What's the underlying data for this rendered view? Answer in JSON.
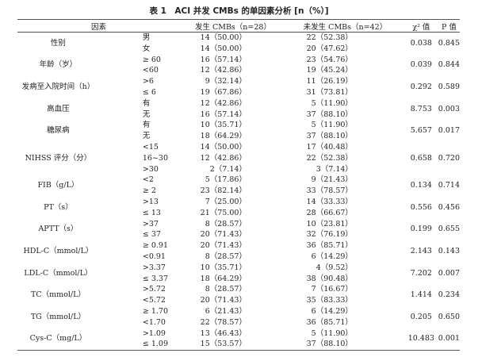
{
  "title": "表 1　ACI 并发 CMBs 的单因素分析 [n（%）]",
  "headers": {
    "factor": "因素",
    "cmb": "发生 CMBs（n=28）",
    "nocmb": "未发生 CMBs（n=42）",
    "chi": "χ² 值",
    "p": "P 值"
  },
  "rows": [
    {
      "factor": "性别",
      "chi": "0.038",
      "p": "0.845",
      "levels": [
        {
          "level": "男",
          "cmb": "14（50.00）",
          "nocmb": "22（52.38）"
        },
        {
          "level": "女",
          "cmb": "14（50.00）",
          "nocmb": "20（47.62）"
        }
      ]
    },
    {
      "factor": "年龄（岁）",
      "chi": "0.039",
      "p": "0.844",
      "levels": [
        {
          "level": "≥ 60",
          "cmb": "16（57.14）",
          "nocmb": "23（54.76）"
        },
        {
          "level": "<60",
          "cmb": "12（42.86）",
          "nocmb": "19（45.24）"
        }
      ]
    },
    {
      "factor": "发病至入院时间（h）",
      "chi": "0.292",
      "p": "0.589",
      "levels": [
        {
          "level": ">6",
          "cmb": "9（32.14）",
          "nocmb": "11（26.19）"
        },
        {
          "level": "≤ 6",
          "cmb": "19（67.86）",
          "nocmb": "31（73.81）"
        }
      ]
    },
    {
      "factor": "高血压",
      "chi": "8.753",
      "p": "0.003",
      "levels": [
        {
          "level": "有",
          "cmb": "12（42.86）",
          "nocmb": "5（11.90）"
        },
        {
          "level": "无",
          "cmb": "16（57.14）",
          "nocmb": "37（88.10）"
        }
      ]
    },
    {
      "factor": "糖尿病",
      "chi": "5.657",
      "p": "0.017",
      "levels": [
        {
          "level": "有",
          "cmb": "10（35.71）",
          "nocmb": "5（11.90）"
        },
        {
          "level": "无",
          "cmb": "18（64.29）",
          "nocmb": "37（88.10）"
        }
      ]
    },
    {
      "factor": "NIHSS 评分（分）",
      "chi": "0.658",
      "p": "0.720",
      "levels": [
        {
          "level": "<15",
          "cmb": "14（50.00）",
          "nocmb": "17（40.48）"
        },
        {
          "level": "16~30",
          "cmb": "12（42.86）",
          "nocmb": "22（52.38）"
        },
        {
          "level": ">30",
          "cmb": "2（7.14）",
          "nocmb": "3（7.14）"
        }
      ]
    },
    {
      "factor": "FIB（g/L）",
      "chi": "0.134",
      "p": "0.714",
      "levels": [
        {
          "level": "<2",
          "cmb": "5（17.86）",
          "nocmb": "9（21.43）"
        },
        {
          "level": "≥ 2",
          "cmb": "23（82.14）",
          "nocmb": "33（78.57）"
        }
      ]
    },
    {
      "factor": "PT（s）",
      "chi": "0.556",
      "p": "0.456",
      "levels": [
        {
          "level": ">13",
          "cmb": "7（25.00）",
          "nocmb": "14（33.33）"
        },
        {
          "level": "≤ 13",
          "cmb": "21（75.00）",
          "nocmb": "28（66.67）"
        }
      ]
    },
    {
      "factor": "APTT（s）",
      "chi": "0.199",
      "p": "0.655",
      "levels": [
        {
          "level": ">37",
          "cmb": "8（28.57）",
          "nocmb": "10（23.81）"
        },
        {
          "level": "≤ 37",
          "cmb": "20（71.43）",
          "nocmb": "32（76.19）"
        }
      ]
    },
    {
      "factor": "HDL-C（mmol/L）",
      "chi": "2.143",
      "p": "0.143",
      "levels": [
        {
          "level": "≥ 0.91",
          "cmb": "20（71.43）",
          "nocmb": "36（85.71）"
        },
        {
          "level": "<0.91",
          "cmb": "8（28.57）",
          "nocmb": "6（14.29）"
        }
      ]
    },
    {
      "factor": "LDL-C（mmol/L）",
      "chi": "7.202",
      "p": "0.007",
      "levels": [
        {
          "level": ">3.37",
          "cmb": "10（35.71）",
          "nocmb": "4（9.52）"
        },
        {
          "level": "≤ 3.37",
          "cmb": "18（64.29）",
          "nocmb": "38（90.48）"
        }
      ]
    },
    {
      "factor": "TC（mmol/L）",
      "chi": "1.414",
      "p": "0.234",
      "levels": [
        {
          "level": ">5.72",
          "cmb": "8（28.57）",
          "nocmb": "7（16.67）"
        },
        {
          "level": "<5.72",
          "cmb": "20（71.43）",
          "nocmb": "35（83.33）"
        }
      ]
    },
    {
      "factor": "TG（mmol/L）",
      "chi": "0.205",
      "p": "0.650",
      "levels": [
        {
          "level": "≥ 1.70",
          "cmb": "6（21.43）",
          "nocmb": "6（14.29）"
        },
        {
          "level": "<1.70",
          "cmb": "22（78.57）",
          "nocmb": "36（85.71）"
        }
      ]
    },
    {
      "factor": "Cys-C（mg/L）",
      "chi": "10.483",
      "p": "0.001",
      "levels": [
        {
          "level": ">1.09",
          "cmb": "13（46.43）",
          "nocmb": "5（11.90）"
        },
        {
          "level": "≤ 1.09",
          "cmb": "15（53.57）",
          "nocmb": "37（88.10）"
        }
      ]
    }
  ]
}
